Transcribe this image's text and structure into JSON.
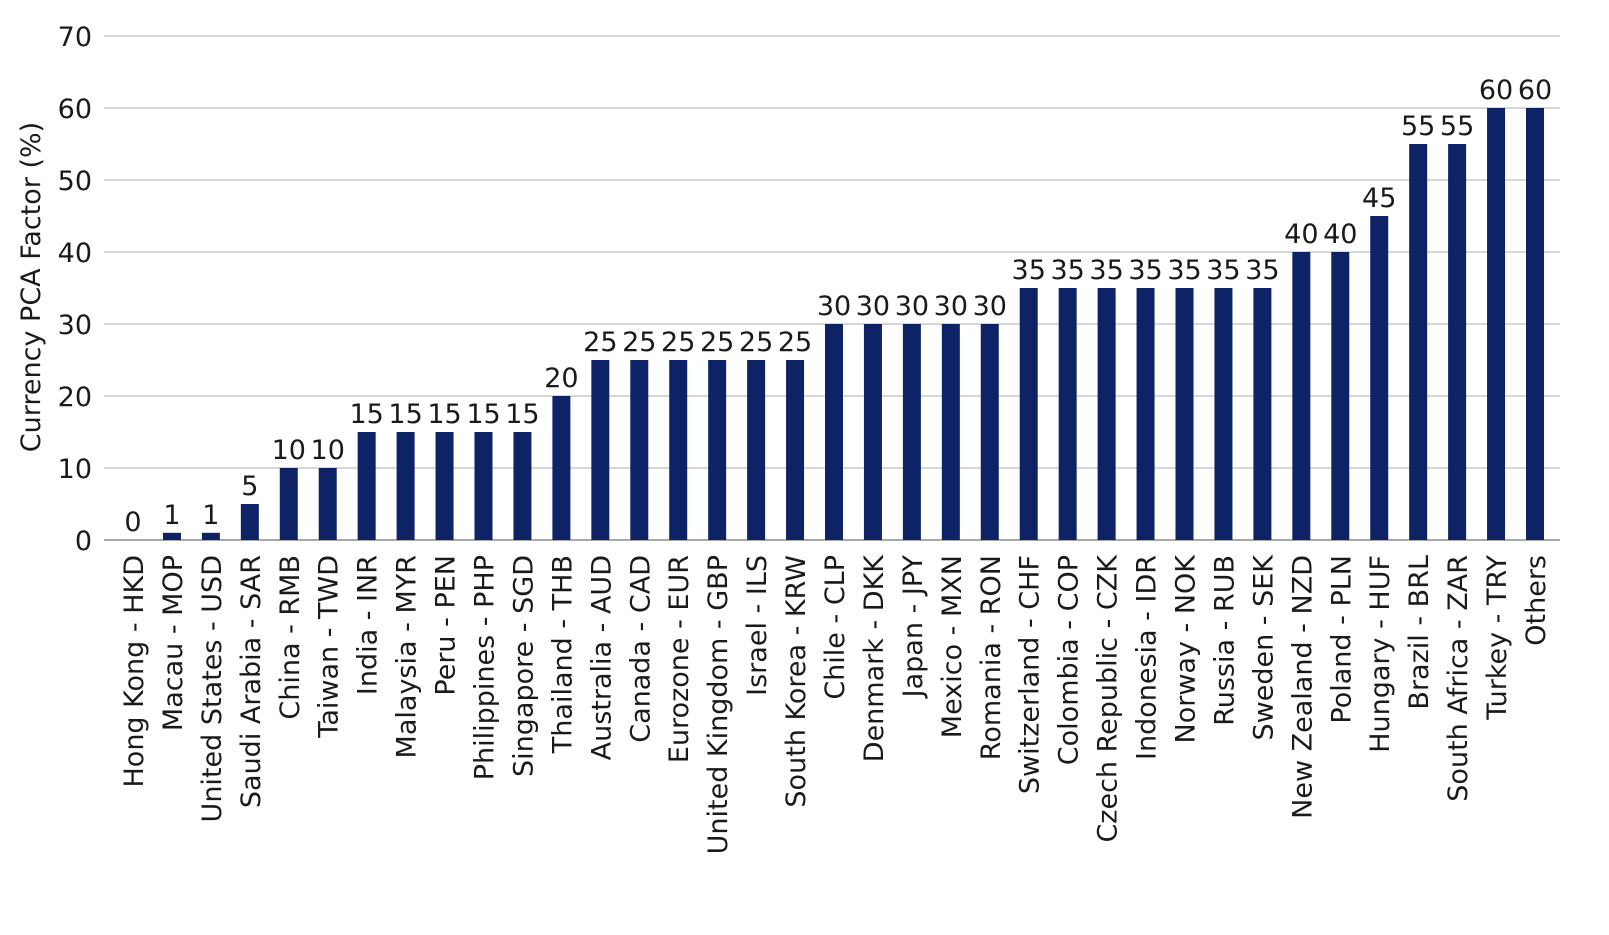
{
  "chart_data": {
    "type": "bar",
    "ylabel": "Currency PCA Factor (%)",
    "xlabel": "",
    "ylim": [
      0,
      70
    ],
    "yticks": [
      0,
      10,
      20,
      30,
      40,
      50,
      60,
      70
    ],
    "grid": true,
    "bar_color": "#0d2366",
    "categories": [
      "Hong Kong - HKD",
      "Macau - MOP",
      "United States - USD",
      "Saudi Arabia - SAR",
      "China - RMB",
      "Taiwan - TWD",
      "India - INR",
      "Malaysia - MYR",
      "Peru - PEN",
      "Philippines - PHP",
      "Singapore - SGD",
      "Thailand - THB",
      "Australia - AUD",
      "Canada - CAD",
      "Eurozone - EUR",
      "United Kingdom - GBP",
      "Israel - ILS",
      "South Korea - KRW",
      "Chile - CLP",
      "Denmark - DKK",
      "Japan - JPY",
      "Mexico - MXN",
      "Romania - RON",
      "Switzerland - CHF",
      "Colombia - COP",
      "Czech Republic - CZK",
      "Indonesia - IDR",
      "Norway - NOK",
      "Russia - RUB",
      "Sweden - SEK",
      "New Zealand - NZD",
      "Poland - PLN",
      "Hungary - HUF",
      "Brazil - BRL",
      "South Africa - ZAR",
      "Turkey - TRY",
      "Others"
    ],
    "values": [
      0,
      1,
      1,
      5,
      10,
      10,
      15,
      15,
      15,
      15,
      15,
      20,
      25,
      25,
      25,
      25,
      25,
      25,
      30,
      30,
      30,
      30,
      30,
      35,
      35,
      35,
      35,
      35,
      35,
      35,
      40,
      40,
      45,
      55,
      55,
      60,
      60
    ]
  }
}
